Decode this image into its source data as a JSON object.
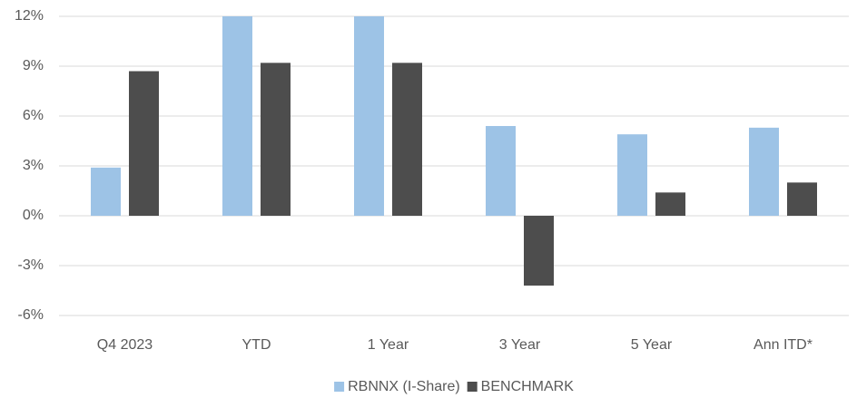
{
  "chart_data": {
    "type": "bar",
    "categories": [
      "Q4 2023",
      "YTD",
      "1 Year",
      "3 Year",
      "5 Year",
      "Ann ITD*"
    ],
    "series": [
      {
        "name": "RBNNX (I-Share)",
        "color": "#9dc3e6",
        "values": [
          2.9,
          12.0,
          12.0,
          5.4,
          4.9,
          5.3
        ]
      },
      {
        "name": "BENCHMARK",
        "color": "#4d4d4d",
        "values": [
          8.7,
          9.2,
          9.2,
          -4.2,
          1.4,
          2.0
        ]
      }
    ],
    "ylim": [
      -6,
      12
    ],
    "yticks": [
      {
        "value": -6,
        "label": "-6%"
      },
      {
        "value": -3,
        "label": "-3%"
      },
      {
        "value": 0,
        "label": "0%"
      },
      {
        "value": 3,
        "label": "3%"
      },
      {
        "value": 6,
        "label": "6%"
      },
      {
        "value": 9,
        "label": "9%"
      },
      {
        "value": 12,
        "label": "12%"
      }
    ],
    "grid": true,
    "legend": "bottom"
  }
}
